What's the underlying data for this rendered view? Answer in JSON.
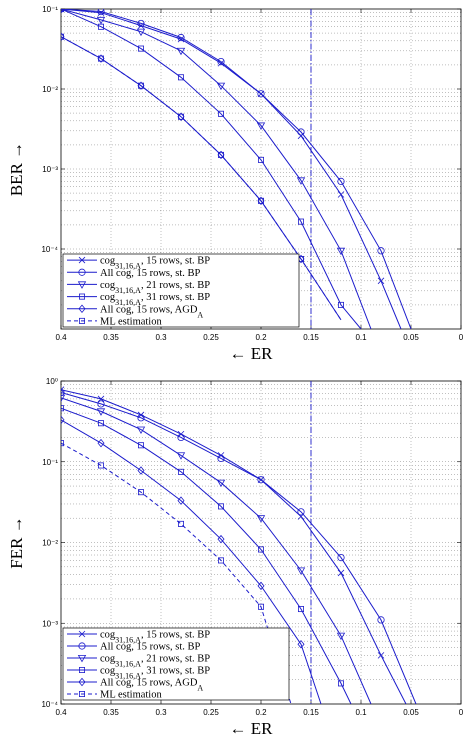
{
  "chart_data": [
    {
      "type": "line",
      "xlabel": "← ER",
      "ylabel": "BER →",
      "xlim": [
        0.4,
        0
      ],
      "ylim": [
        1e-05,
        0.1
      ],
      "yscale": "log",
      "grid": true,
      "legend_position": "bottom-left",
      "xticks": [
        "0.4",
        "0.35",
        "0.3",
        "0.25",
        "0.2",
        "0.15",
        "0.1",
        "0.05",
        "0"
      ],
      "yticks": [
        "10⁻¹",
        "10⁻²",
        "10⁻³",
        "10⁻⁴"
      ],
      "reference_line": {
        "x": 0.15,
        "style": "dash-dot"
      },
      "series": [
        {
          "name": "cog31,16,A, 15 rows, st. BP",
          "marker": "x",
          "dash": "solid",
          "x": [
            0.4,
            0.36,
            0.32,
            0.28,
            0.24,
            0.2,
            0.16,
            0.12,
            0.08,
            0.06
          ],
          "y": [
            0.1,
            0.09,
            0.062,
            0.042,
            0.021,
            0.0087,
            0.0026,
            0.00048,
            4e-05,
            1e-05
          ]
        },
        {
          "name": "All cog, 15 rows, st. BP",
          "marker": "o",
          "dash": "solid",
          "x": [
            0.4,
            0.36,
            0.32,
            0.28,
            0.24,
            0.2,
            0.16,
            0.12,
            0.08,
            0.05
          ],
          "y": [
            0.1,
            0.093,
            0.066,
            0.044,
            0.022,
            0.0087,
            0.0029,
            0.0007,
            9.5e-05,
            1e-05
          ]
        },
        {
          "name": "cog31,16,A, 21 rows, st. BP",
          "marker": "v",
          "dash": "solid",
          "x": [
            0.4,
            0.36,
            0.32,
            0.28,
            0.24,
            0.2,
            0.16,
            0.12,
            0.09
          ],
          "y": [
            0.1,
            0.073,
            0.052,
            0.03,
            0.011,
            0.0035,
            0.00072,
            9.5e-05,
            1e-05
          ]
        },
        {
          "name": "cog31,16,A, 31 rows, st. BP",
          "marker": "s",
          "dash": "solid",
          "x": [
            0.4,
            0.36,
            0.32,
            0.28,
            0.24,
            0.2,
            0.16,
            0.12,
            0.1
          ],
          "y": [
            0.1,
            0.06,
            0.032,
            0.014,
            0.0049,
            0.0013,
            0.00022,
            2e-05,
            1e-05
          ]
        },
        {
          "name": "All cog, 15 rows, AGDA",
          "marker": "d",
          "dash": "solid",
          "x": [
            0.4,
            0.36,
            0.32,
            0.28,
            0.24,
            0.2,
            0.16,
            0.12
          ],
          "y": [
            0.045,
            0.024,
            0.011,
            0.0045,
            0.0015,
            0.0004,
            7.5e-05,
            1.3e-05
          ]
        },
        {
          "name": "ML estimation",
          "marker": "s",
          "dash": "dashed",
          "x": [
            0.4,
            0.36,
            0.32,
            0.28,
            0.24,
            0.2,
            0.16,
            0.12
          ],
          "y": [
            0.045,
            0.024,
            0.011,
            0.0045,
            0.0015,
            0.0004,
            7.5e-05,
            1.3e-05
          ]
        }
      ]
    },
    {
      "type": "line",
      "xlabel": "← ER",
      "ylabel": "FER →",
      "xlim": [
        0.4,
        0
      ],
      "ylim": [
        0.0001,
        1
      ],
      "yscale": "log",
      "grid": true,
      "legend_position": "bottom-left",
      "xticks": [
        "0.4",
        "0.35",
        "0.3",
        "0.25",
        "0.2",
        "0.15",
        "0.1",
        "0.05",
        "0"
      ],
      "yticks": [
        "10⁰",
        "10⁻¹",
        "10⁻²",
        "10⁻³",
        "10⁻⁴"
      ],
      "reference_line": {
        "x": 0.15,
        "style": "dash-dot"
      },
      "series": [
        {
          "name": "cog31,16,A, 15 rows, st. BP",
          "marker": "x",
          "dash": "solid",
          "x": [
            0.4,
            0.36,
            0.32,
            0.28,
            0.24,
            0.2,
            0.16,
            0.12,
            0.08,
            0.055
          ],
          "y": [
            0.78,
            0.6,
            0.38,
            0.22,
            0.12,
            0.06,
            0.021,
            0.0042,
            0.0004,
            0.0001
          ]
        },
        {
          "name": "All cog, 15 rows, st. BP",
          "marker": "o",
          "dash": "solid",
          "x": [
            0.4,
            0.36,
            0.32,
            0.28,
            0.24,
            0.2,
            0.16,
            0.12,
            0.08,
            0.045
          ],
          "y": [
            0.72,
            0.52,
            0.35,
            0.2,
            0.11,
            0.06,
            0.024,
            0.0065,
            0.0011,
            0.0001
          ]
        },
        {
          "name": "cog31,16,A, 21 rows, st. BP",
          "marker": "v",
          "dash": "solid",
          "x": [
            0.4,
            0.36,
            0.32,
            0.28,
            0.24,
            0.2,
            0.16,
            0.12,
            0.09
          ],
          "y": [
            0.62,
            0.42,
            0.25,
            0.12,
            0.055,
            0.02,
            0.0045,
            0.0007,
            0.0001
          ]
        },
        {
          "name": "cog31,16,A, 31 rows, st. BP",
          "marker": "s",
          "dash": "solid",
          "x": [
            0.4,
            0.36,
            0.32,
            0.28,
            0.24,
            0.2,
            0.16,
            0.12,
            0.11
          ],
          "y": [
            0.46,
            0.3,
            0.16,
            0.075,
            0.028,
            0.0082,
            0.0015,
            0.00018,
            0.0001
          ]
        },
        {
          "name": "All cog, 15 rows, AGDA",
          "marker": "d",
          "dash": "solid",
          "x": [
            0.4,
            0.36,
            0.32,
            0.28,
            0.24,
            0.2,
            0.16,
            0.14
          ],
          "y": [
            0.33,
            0.17,
            0.078,
            0.033,
            0.011,
            0.0029,
            0.00055,
            0.0001
          ]
        },
        {
          "name": "ML estimation",
          "marker": "s",
          "dash": "dashed",
          "x": [
            0.4,
            0.36,
            0.32,
            0.28,
            0.24,
            0.2,
            0.17
          ],
          "y": [
            0.17,
            0.09,
            0.042,
            0.017,
            0.006,
            0.0016,
            0.0001
          ]
        }
      ]
    }
  ]
}
